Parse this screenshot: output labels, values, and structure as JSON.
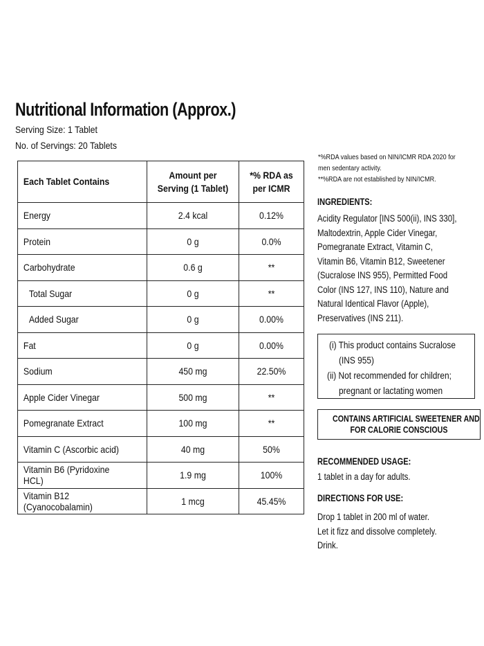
{
  "title": "Nutritional Information (Approx.)",
  "serving_size": "Serving Size: 1 Tablet",
  "servings_count": "No. of Servings: 20 Tablets",
  "table": {
    "headers": [
      "Each Tablet Contains",
      "Amount per Serving (1 Tablet)",
      "*% RDA as per ICMR"
    ],
    "rows": [
      {
        "name": "Energy",
        "amount": "2.4 kcal",
        "rda": "0.12%"
      },
      {
        "name": "Protein",
        "amount": "0 g",
        "rda": "0.0%"
      },
      {
        "name": "Carbohydrate",
        "amount": "0.6 g",
        "rda": "**"
      },
      {
        "name": "Total Sugar",
        "amount": "0 g",
        "rda": "**"
      },
      {
        "name": "Added Sugar",
        "amount": "0 g",
        "rda": "0.00%"
      },
      {
        "name": "Fat",
        "amount": "0 g",
        "rda": "0.00%"
      },
      {
        "name": "Sodium",
        "amount": "450 mg",
        "rda": "22.50%"
      },
      {
        "name": "Apple Cider Vinegar",
        "amount": "500 mg",
        "rda": "**"
      },
      {
        "name": "Pomegranate Extract",
        "amount": "100 mg",
        "rda": "**"
      },
      {
        "name": "Vitamin C (Ascorbic acid)",
        "amount": "40 mg",
        "rda": "50%"
      },
      {
        "name": "Vitamin B6 (Pyridoxine HCL)",
        "amount": "1.9 mg",
        "rda": "100%"
      },
      {
        "name": "Vitamin B12 (Cyanocobalamin)",
        "amount": "1 mcg",
        "rda": "45.45%"
      }
    ]
  },
  "notes": {
    "line1": "*%RDA values based on NIN/ICMR RDA 2020 for",
    "line2": "men sedentary activity.",
    "line3": "**%RDA are not established by NIN/ICMR."
  },
  "ingredients": {
    "heading": "INGREDIENTS:",
    "lines": [
      "Acidity Regulator [INS 500(ii), INS 330],",
      "Maltodextrin, Apple Cider Vinegar,",
      "Pomegranate Extract, Vitamin C,",
      "Vitamin B6, Vitamin B12, Sweetener",
      "(Sucralose INS 955), Permitted Food",
      "Color (INS 127, INS 110), Nature and",
      "Natural Identical Flavor (Apple),",
      "Preservatives (INS 211)."
    ]
  },
  "warning": {
    "line1": "(i) This product contains Sucralose",
    "line2": "(INS 955)",
    "line3": "(ii) Not recommended for children;",
    "line4": "pregnant or lactating women"
  },
  "sweetener_notice": {
    "line1": "CONTAINS ARTIFICIAL SWEETENER AND",
    "line2": "FOR CALORIE CONSCIOUS"
  },
  "recommended": {
    "heading": "RECOMMENDED USAGE:",
    "text": "1 tablet in a day for adults."
  },
  "directions": {
    "heading": "DIRECTIONS FOR USE:",
    "lines": [
      "Drop 1 tablet in 200 ml of water.",
      "Let it fizz and dissolve completely.",
      "Drink."
    ]
  }
}
